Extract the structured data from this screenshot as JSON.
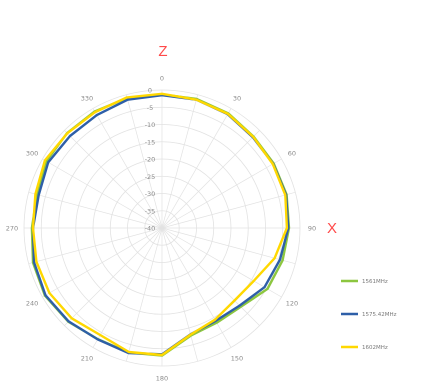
{
  "chart_data": {
    "type": "polar-line",
    "z_label": "Z",
    "x_label": "X",
    "r_ticks": [
      "0",
      "-5",
      "-10",
      "-15",
      "-20",
      "-25",
      "-30",
      "-35",
      "-40"
    ],
    "angle_ticks": [
      "0",
      "30",
      "60",
      "90",
      "120",
      "150",
      "180",
      "210",
      "240",
      "270",
      "300",
      "330"
    ],
    "angle_step": 15,
    "series": [
      {
        "name": "1561MHz",
        "color": "#8cc63f",
        "angles": [
          0,
          15,
          30,
          45,
          60,
          75,
          90,
          105,
          120,
          135,
          150,
          165,
          180,
          195,
          210,
          225,
          240,
          255,
          270,
          285,
          300,
          315,
          330,
          345
        ],
        "values": [
          -1.3,
          -1.3,
          -1.6,
          -2.5,
          -2.6,
          -2.6,
          -3.2,
          -3.8,
          -4.7,
          -7.7,
          -8.3,
          -7.7,
          -3.0,
          -2.6,
          -2.8,
          -1.6,
          -0.8,
          -1.3,
          -2.3,
          -2.5,
          -1.3,
          -1.1,
          -1.0,
          -1.0
        ]
      },
      {
        "name": "1575.42MHz",
        "color": "#2e5fa8",
        "angles": [
          0,
          15,
          30,
          45,
          60,
          75,
          90,
          105,
          120,
          135,
          150,
          165,
          180,
          195,
          210,
          225,
          240,
          255,
          270,
          285,
          300,
          315,
          330,
          345
        ],
        "values": [
          -1.5,
          -1.5,
          -1.9,
          -2.8,
          -2.8,
          -2.8,
          -3.4,
          -4.6,
          -5.7,
          -8.2,
          -8.9,
          -8.1,
          -3.4,
          -2.5,
          -2.7,
          -1.7,
          -1.0,
          -1.6,
          -2.6,
          -3.0,
          -1.9,
          -2.3,
          -2.2,
          -1.5
        ]
      },
      {
        "name": "1602MHz",
        "color": "#ffd800",
        "angles": [
          0,
          15,
          30,
          45,
          60,
          75,
          90,
          105,
          120,
          135,
          150,
          165,
          180,
          195,
          210,
          225,
          240,
          255,
          270,
          285,
          300,
          315,
          330,
          345
        ],
        "values": [
          -1.1,
          -1.5,
          -1.8,
          -2.6,
          -2.9,
          -3.0,
          -3.8,
          -6.2,
          -9.3,
          -10.3,
          -9.3,
          -8.0,
          -3.2,
          -2.8,
          -4.2,
          -3.0,
          -2.3,
          -2.3,
          -2.6,
          -2.0,
          -0.8,
          -1.2,
          -1.2,
          -0.8
        ]
      }
    ],
    "legend_position": "right"
  }
}
